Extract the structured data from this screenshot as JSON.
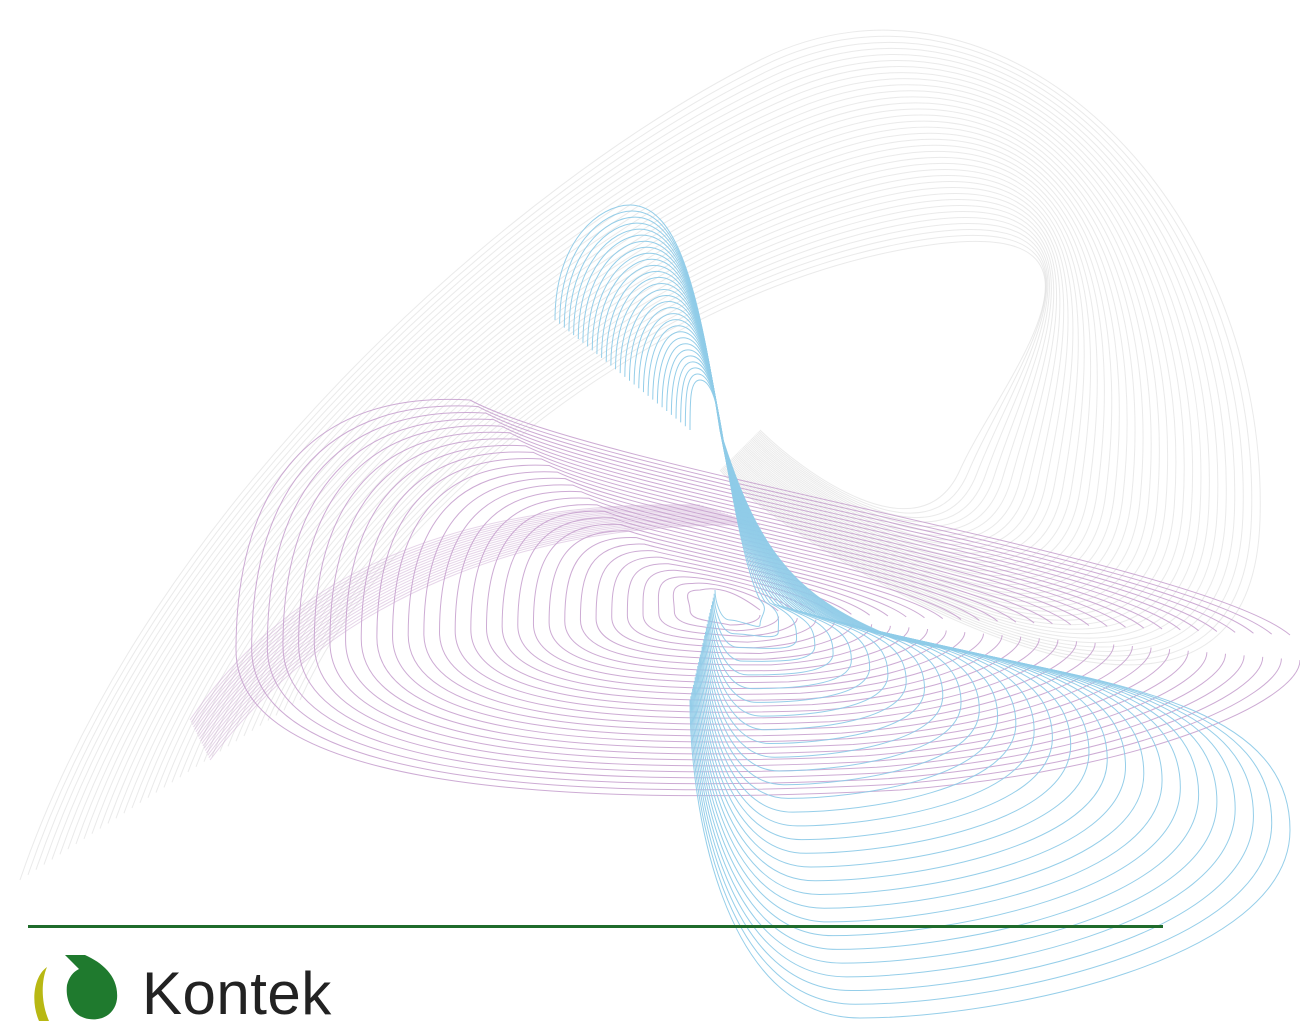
{
  "brand": {
    "name": "Kontek",
    "mark_colors": {
      "crescent": "#b8b813",
      "leaf": "#1f7a2e"
    }
  },
  "colors": {
    "rule": "#1f6b2b",
    "wave_gray": "#d9d9d9",
    "wave_purple": "#c8a2cf",
    "wave_blue": "#8fcbe8"
  }
}
